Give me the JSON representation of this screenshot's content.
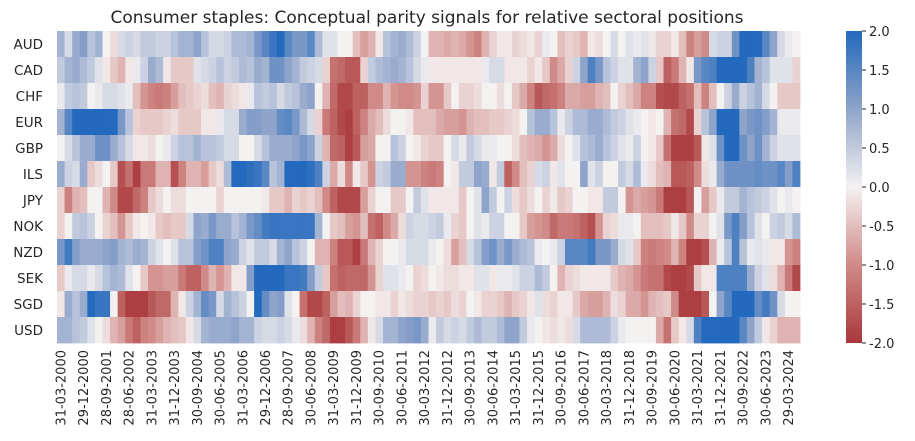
{
  "chart_data": {
    "type": "heatmap",
    "title": "Consumer staples: Conceptual parity signals for relative sectoral positions",
    "xlabel": "",
    "ylabel": "",
    "rows": [
      "AUD",
      "CAD",
      "CHF",
      "EUR",
      "GBP",
      "ILS",
      "JPY",
      "NOK",
      "NZD",
      "SEK",
      "SGD",
      "USD"
    ],
    "x_tick_labels": [
      "31-03-2000",
      "29-12-2000",
      "28-09-2001",
      "28-06-2002",
      "31-03-2003",
      "31-12-2003",
      "30-09-2004",
      "30-06-2005",
      "31-03-2006",
      "29-12-2006",
      "28-09-2007",
      "30-06-2008",
      "31-03-2009",
      "31-12-2009",
      "30-09-2010",
      "30-06-2011",
      "30-03-2012",
      "31-12-2012",
      "30-09-2013",
      "30-06-2014",
      "31-03-2015",
      "31-12-2015",
      "30-09-2016",
      "30-06-2017",
      "30-03-2018",
      "31-12-2018",
      "30-09-2019",
      "30-06-2020",
      "31-03-2021",
      "31-12-2021",
      "30-09-2022",
      "30-06-2023",
      "29-03-2024"
    ],
    "x_tick_every_n_columns": 3,
    "frequency": "quarterly",
    "colorbar": {
      "min": -2.0,
      "max": 2.0,
      "ticks": [
        "2.0",
        "1.5",
        "1.0",
        "0.5",
        "0.0",
        "-0.5",
        "-1.0",
        "-1.5",
        "-2.0"
      ],
      "low_color": "#A9373B",
      "mid_color": "#F4F1F1",
      "high_color": "#2369BD"
    },
    "values": [
      [
        0.8,
        0.3,
        0.9,
        1.1,
        0.6,
        0.8,
        0,
        -0.2,
        0.3,
        0.4,
        0.3,
        0.5,
        0.5,
        0.4,
        0.4,
        0.6,
        0.8,
        0.8,
        1.0,
        0.6,
        0.3,
        0.3,
        0.4,
        0.7,
        0.7,
        0.8,
        1.2,
        1.5,
        1.8,
        2.0,
        1.5,
        1.2,
        1.2,
        1.5,
        0.7,
        0.2,
        0.2,
        0,
        0,
        -0.5,
        -0.8,
        -0.6,
        -0.1,
        0.6,
        0.8,
        0.9,
        0.7,
        0.4,
        0,
        -0.6,
        -0.6,
        -0.7,
        -0.6,
        -0.7,
        -0.9,
        -1.1,
        -0.6,
        -0.3,
        -0.1,
        -0.1,
        -0.3,
        -0.2,
        -0.1,
        -0.3,
        0.1,
        0,
        -0.5,
        -0.3,
        -0.4,
        -0.6,
        -0.1,
        -0.2,
        0,
        0.3,
        0,
        0.2,
        0.1,
        0.2,
        -0.1,
        -0.3,
        -0.3,
        -0.1,
        -0.5,
        -1.1,
        -0.8,
        -1.0,
        0.3,
        0.4,
        0.4,
        1.3,
        2,
        2,
        2,
        1.5,
        1.0,
        0.3,
        0.1,
        0
      ],
      [
        0.5,
        0.8,
        0.9,
        0.7,
        0.5,
        0.2,
        -0.1,
        -0.4,
        -0.6,
        -0.1,
        0.1,
        0.4,
        0.9,
        0.7,
        -0.1,
        -0.4,
        -0.4,
        -0.4,
        0.2,
        0.3,
        0.4,
        0.6,
        0.4,
        0.5,
        0.7,
        0.6,
        0.9,
        0.8,
        1.3,
        1.3,
        1.0,
        0.8,
        0.5,
        0.4,
        0.3,
        -0.3,
        -1.3,
        -1.4,
        -1.6,
        -1.6,
        -0.3,
        0.5,
        0.7,
        0.8,
        0.9,
        0.8,
        0.6,
        0.3,
        0.1,
        -0.1,
        -0.1,
        -0.1,
        -0.1,
        -0.1,
        -0.1,
        -0.1,
        0.1,
        0.3,
        0.3,
        -0.1,
        -0.1,
        -0.1,
        -0.3,
        -0.1,
        -0.4,
        -1.0,
        -0.7,
        -0.3,
        0.4,
        1.0,
        1.6,
        1.2,
        0.6,
        0.4,
        0.2,
        0.2,
        0.8,
        1.0,
        0.4,
        -0.4,
        -1.5,
        -1.2,
        -0.6,
        -0.1,
        1.2,
        1.5,
        1.6,
        2,
        2,
        2,
        2,
        1.6,
        0.8,
        0.6,
        0.2,
        0.2,
        0.2,
        -0.3
      ],
      [
        0.1,
        0.5,
        0.6,
        0.5,
        0,
        0.1,
        0.3,
        0.3,
        0.2,
        0.1,
        -0.5,
        -0.9,
        -1.1,
        -1.2,
        -1.1,
        -0.8,
        -0.5,
        -0.4,
        -0.3,
        -0.2,
        -0.5,
        -0.6,
        -0.3,
        -0.2,
        -0.1,
        0.1,
        0.6,
        0.5,
        0.6,
        0.3,
        0.5,
        0.6,
        0.9,
        1.0,
        0,
        -0.6,
        -1.4,
        -1.8,
        -1.8,
        -1.5,
        -1.5,
        -1.0,
        -1.0,
        -0.6,
        -0.9,
        -1.0,
        -1.0,
        -0.9,
        -0.3,
        -0.9,
        -0.9,
        -0.4,
        0,
        -0.3,
        -0.3,
        -0.2,
        0,
        0,
        -0.2,
        0,
        -0.4,
        -0.7,
        -1.1,
        -1.6,
        -1.4,
        -1.3,
        -1.1,
        -0.7,
        -0.7,
        -0.8,
        -0.8,
        -0.6,
        -0.5,
        0,
        -0.3,
        -0.5,
        -0.7,
        -1.1,
        -1.1,
        -1.7,
        -1.8,
        -1.8,
        -1.5,
        -1.3,
        -0.5,
        -1.1,
        -0.5,
        0,
        0.4,
        0.9,
        0.4,
        0.6,
        0.8,
        0.3,
        0,
        -0.4,
        -0.4,
        -0.4
      ],
      [
        0.8,
        1.5,
        2,
        2,
        2,
        2,
        2,
        2,
        1.2,
        0.6,
        -0.3,
        -0.4,
        -0.4,
        -0.4,
        -0.3,
        -0.2,
        -0.4,
        -0.4,
        -0.4,
        -0.1,
        -0.1,
        0.1,
        0.3,
        0.3,
        0.9,
        1.1,
        1.1,
        1.0,
        1.0,
        1.4,
        1.5,
        1.2,
        0.7,
        0.3,
        -0.3,
        -1.2,
        -1.5,
        -1.8,
        -1.9,
        -1.5,
        -1.1,
        -0.7,
        -0.5,
        -0.2,
        0,
        0,
        -0.1,
        -0.5,
        -0.5,
        -0.5,
        -0.7,
        -0.8,
        -0.8,
        -0.9,
        -0.6,
        -0.5,
        -0.5,
        -0.4,
        -0.4,
        -0.3,
        -0.2,
        0,
        0.6,
        0.9,
        0.9,
        0.6,
        0.1,
        0.4,
        0.7,
        0.7,
        0.9,
        0.9,
        0.7,
        0.5,
        0.4,
        0.2,
        0.1,
        0,
        -0.1,
        0,
        -0.6,
        -1.3,
        -1.4,
        -1.8,
        -0.3,
        0.6,
        1.0,
        2,
        2,
        2,
        1.0,
        1.2,
        1.3,
        1.1,
        0.8,
        0.1,
        0.1,
        0.1
      ],
      [
        0,
        0.3,
        0.6,
        0.9,
        0.9,
        1.3,
        1.3,
        0.9,
        0.6,
        0.3,
        -0.1,
        -0.1,
        -0.2,
        0,
        0.1,
        0.4,
        0.6,
        0.6,
        0.8,
        0.6,
        0.6,
        0.5,
        0.3,
        0.3,
        0,
        0,
        0.3,
        0.6,
        0.9,
        0.9,
        0.9,
        1.0,
        1.2,
        1.0,
        0.4,
        -0.6,
        -1.4,
        -1.5,
        -1.9,
        -1.6,
        -0.8,
        -0.7,
        0,
        0,
        0.6,
        0.4,
        0,
        -0.1,
        -0.3,
        -0.4,
        -0.4,
        0,
        0.3,
        0.1,
        0.5,
        0.3,
        0.1,
        0.1,
        0,
        0,
        -0.2,
        -0.5,
        -0.6,
        -0.7,
        -0.9,
        -0.7,
        -0.2,
        0,
        0.2,
        0.6,
        0.7,
        0.9,
        0.6,
        0.4,
        0.2,
        0.1,
        0.4,
        0,
        -0.1,
        -0.4,
        -1.3,
        -1.9,
        -1.9,
        -1.9,
        -1.6,
        -0.1,
        0.2,
        1.3,
        2,
        2,
        1.3,
        1.0,
        1.3,
        0.8,
        0.4,
        0.2,
        0.2,
        0.2
      ],
      [
        0.9,
        0.4,
        0.3,
        0.9,
        -0.4,
        -0.2,
        0,
        -0.4,
        -1.7,
        -1.3,
        -1.9,
        -1.2,
        -1.2,
        -0.6,
        -0.6,
        -1.7,
        -1.1,
        -0.6,
        -0.6,
        -0.8,
        -0.4,
        -0.2,
        0.7,
        2,
        2,
        1.9,
        1.8,
        1.5,
        0.6,
        0.8,
        2,
        2,
        2,
        1.9,
        1.6,
        0.4,
        -0.7,
        -0.2,
        -1.0,
        -0.1,
        -0.4,
        -0.9,
        0.4,
        0.5,
        0.9,
        0.9,
        -0.9,
        -0.9,
        -1.1,
        -1.2,
        -1.1,
        0,
        -0.1,
        0.5,
        0.5,
        1.0,
        0.9,
        -0.1,
        0.5,
        -1.5,
        -1.0,
        -0.5,
        -0.3,
        0.3,
        0.4,
        -0.1,
        0.2,
        0,
        0,
        1.0,
        0.2,
        0.4,
        0,
        0,
        0.5,
        0.3,
        0.7,
        0.1,
        -0.2,
        -0.5,
        -0.6,
        -1.6,
        -1.6,
        -1.5,
        -1.0,
        -0.2,
        0.1,
        0.9,
        1.3,
        1.3,
        1.3,
        1.3,
        1.4,
        1.3,
        1.3,
        1.5,
        1.1,
        1.6
      ],
      [
        -0.3,
        -1.1,
        -0.6,
        -0.5,
        0,
        0,
        -0.6,
        -1.0,
        -1.8,
        -1.8,
        -1.4,
        -1.1,
        -0.4,
        -0.2,
        0,
        -0.2,
        -0.2,
        0,
        0,
        0,
        0,
        -0.3,
        0,
        0,
        0,
        0,
        0,
        -0.1,
        -0.4,
        -0.4,
        -0.6,
        -0.3,
        -0.4,
        -0.3,
        -0.5,
        -1.0,
        -1.5,
        -1.8,
        -1.8,
        -1.8,
        -0.8,
        -0.3,
        0,
        0,
        -0.4,
        -0.4,
        0,
        0.5,
        0.2,
        -0.1,
        -0.1,
        -0.1,
        -0.1,
        -0.4,
        0,
        0.2,
        1.0,
        0.5,
        0,
        0.4,
        -0.2,
        -0.4,
        -0.2,
        0,
        -0.3,
        -0.1,
        -0.4,
        -0.3,
        0,
        0,
        -0.1,
        -0.1,
        0.5,
        0.5,
        0,
        -0.9,
        -0.7,
        -0.8,
        -0.9,
        -1.2,
        -1.9,
        -1.9,
        -1.9,
        -1.6,
        0,
        -0.8,
        -0.4,
        0.1,
        0.5,
        0.5,
        0.8,
        0.6,
        0.5,
        0.4,
        0.2,
        0,
        0.1,
        0
      ],
      [
        -0.3,
        0,
        0.5,
        0.6,
        0.4,
        0,
        -0.3,
        -0.5,
        -0.9,
        -0.4,
        -0.1,
        0,
        -0.1,
        -0.4,
        -0.5,
        -0.4,
        -0.4,
        0.3,
        1.0,
        0.9,
        1.2,
        0.9,
        0.9,
        0.6,
        0.8,
        1.2,
        1.4,
        1.7,
        1.8,
        1.8,
        1.8,
        1.8,
        1.8,
        1.8,
        0.8,
        0,
        -0.4,
        -0.5,
        -0.8,
        -0.9,
        -0.5,
        -1.3,
        -1.5,
        -1.0,
        -0.7,
        -0.2,
        0.4,
        0.3,
        0.3,
        0.4,
        0.5,
        0.1,
        -0.3,
        -0.4,
        0,
        0.2,
        0.1,
        0.4,
        0.4,
        0,
        0,
        -0.4,
        -0.8,
        -0.9,
        -1.0,
        -1.4,
        -1.2,
        -1.2,
        -1.3,
        -1.5,
        -1.7,
        -0.9,
        -0.3,
        -0.2,
        0.1,
        0.1,
        0,
        -0.5,
        -0.5,
        -0.5,
        -0.4,
        -0.1,
        -0.4,
        -1.0,
        -0.3,
        -0.3,
        0,
        0.2,
        1.2,
        1.6,
        1.1,
        0.6,
        0.2,
        0,
        0.4,
        0.5,
        0.3,
        0.7
      ],
      [
        1.2,
        1.7,
        1.1,
        0.9,
        0.9,
        0.9,
        1.0,
        1.1,
        0.8,
        0.7,
        0.9,
        0.8,
        0.4,
        0.2,
        0,
        0.2,
        0.6,
        0.6,
        1.1,
        1.3,
        1.6,
        1.6,
        1.0,
        0.9,
        0.4,
        0.2,
        0.5,
        0.5,
        0.3,
        0.8,
        1.0,
        0.6,
        0.4,
        0,
        -0.6,
        -0.6,
        -1.1,
        -1.6,
        -1.6,
        -1.9,
        -1.2,
        -0.6,
        -0.3,
        0,
        0,
        0.1,
        0.3,
        0.3,
        0.3,
        0.1,
        0,
        -0.2,
        -0.8,
        -0.5,
        0.3,
        0.6,
        1.1,
        1.3,
        0.9,
        1.2,
        0.9,
        0.7,
        0.6,
        0.1,
        0,
        0.1,
        0.4,
        1.5,
        1.5,
        1.5,
        1.7,
        1.2,
        1.2,
        0.9,
        0.3,
        0.2,
        -0.4,
        -1.1,
        -1.2,
        -1.1,
        -1.0,
        -0.6,
        -1.1,
        -1.9,
        -1.9,
        -1.7,
        -0.6,
        0.1,
        0.6,
        1.6,
        0.6,
        0.1,
        0.2,
        0.1,
        -0.1,
        -0.1,
        -0.9,
        -1.1
      ],
      [
        -0.4,
        0.1,
        0.3,
        0.3,
        0.1,
        0.3,
        0.6,
        0.8,
        0.7,
        0.2,
        0,
        -0.4,
        -0.9,
        -0.9,
        -0.8,
        -0.8,
        -1.2,
        -1.5,
        -1.5,
        -1.0,
        -0.6,
        -0.9,
        -0.6,
        -0.1,
        -0.1,
        1.1,
        2,
        2,
        2,
        2,
        1.8,
        1.8,
        1.7,
        1.1,
        0.5,
        -0.4,
        -1.3,
        -1.5,
        -1.4,
        -1.4,
        -1.4,
        -0.9,
        -0.3,
        0.2,
        0.2,
        0.1,
        0,
        -0.3,
        -0.2,
        0,
        -0.1,
        -0.2,
        -0.2,
        -0.1,
        -0.1,
        0.2,
        0.2,
        -0.1,
        0.1,
        0.1,
        0.2,
        0.4,
        0.4,
        0.7,
        0.5,
        0,
        -0.6,
        -0.3,
        -0.2,
        -0.1,
        -0.1,
        -0.1,
        -0.1,
        -0.4,
        -0.6,
        -0.7,
        -0.9,
        -1.2,
        -1.3,
        -1.3,
        -1.8,
        -1.9,
        -1.9,
        -1.8,
        -0.4,
        -0.1,
        -0.1,
        1.6,
        1.6,
        1.6,
        1.6,
        0.9,
        0.4,
        0.2,
        -0.2,
        -0.6,
        -1.2,
        -1.8
      ],
      [
        -0.1,
        0.9,
        0.6,
        0.9,
        2,
        1.8,
        1.8,
        0,
        -1.5,
        -1.9,
        -1.9,
        -1.9,
        -1.6,
        -1.4,
        -1.4,
        -0.6,
        -0.1,
        0.4,
        0.8,
        1.4,
        1.2,
        0.3,
        0.8,
        0.6,
        0.4,
        0,
        2,
        1.4,
        1.0,
        1.1,
        0.2,
        0,
        -1.3,
        -1.8,
        -1.8,
        -1.5,
        -0.8,
        -0.5,
        -0.6,
        -0.3,
        0,
        0,
        -0.1,
        -0.1,
        -0.3,
        -0.1,
        -0.2,
        -0.3,
        -0.3,
        -0.4,
        -0.3,
        -0.4,
        -0.2,
        -0.3,
        0,
        -0.1,
        -0.3,
        -0.3,
        -0.4,
        -0.6,
        -0.4,
        -0.3,
        -0.1,
        0.2,
        -0.2,
        -0.3,
        -0.1,
        -0.1,
        -0.4,
        -0.7,
        -0.8,
        -0.8,
        -0.6,
        -0.2,
        -0.3,
        -0.7,
        -0.7,
        -0.9,
        -0.6,
        -0.5,
        -0.4,
        -1.0,
        -1.9,
        -1.9,
        -1.9,
        -1.6,
        0,
        1.0,
        1.5,
        2,
        2,
        2,
        1.4,
        1.7,
        1.3,
        0.3,
        0,
        0
      ],
      [
        0.8,
        0.8,
        0.6,
        0.5,
        0.2,
        0,
        -0.2,
        -0.6,
        -0.8,
        -1.2,
        -1.5,
        -1.1,
        -1.0,
        -0.8,
        -0.6,
        -0.5,
        -0.4,
        -0.1,
        0.3,
        0.8,
        0.9,
        0.9,
        0.9,
        1.0,
        0.8,
        0.8,
        0.4,
        0.3,
        0.3,
        0.4,
        0.3,
        0.1,
        -0.2,
        -0.6,
        -1.1,
        -1.4,
        -1.9,
        -1.9,
        -1.6,
        -1.2,
        -0.6,
        -0.1,
        0.3,
        0.8,
        0.8,
        1.0,
        1.1,
        1.2,
        0.9,
        0.1,
        0.5,
        0.3,
        0.4,
        0.3,
        0.5,
        0.7,
        0.5,
        0.5,
        0.7,
        1.0,
        1.0,
        0.5,
        0.1,
        0,
        -0.1,
        -0.2,
        -0.1,
        -0.2,
        0.3,
        0.7,
        0.7,
        0.7,
        0.7,
        0.4,
        0.1,
        0,
        0,
        0,
        0,
        -0.7,
        -1.3,
        -0.4,
        -0.1,
        0.3,
        1.6,
        2,
        2,
        2,
        2,
        2,
        1.5,
        1.0,
        0.5,
        -0.1,
        -0.3,
        -0.6,
        -0.6,
        -0.6
      ]
    ]
  }
}
